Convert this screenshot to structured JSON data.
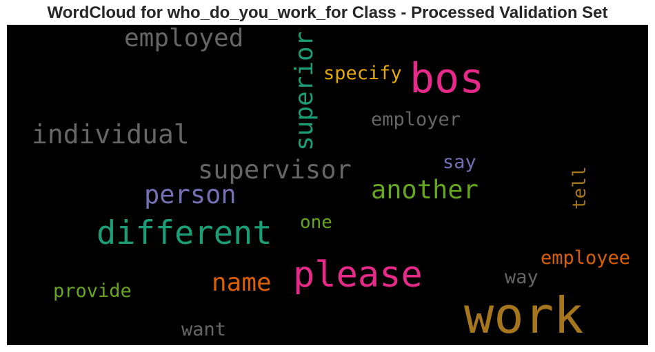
{
  "title": "WordCloud for who_do_you_work_for Class - Processed Validation Set",
  "words": {
    "employed": {
      "text": "employed",
      "color": "#666666"
    },
    "superior": {
      "text": "superior",
      "color": "#1b9e77"
    },
    "specify": {
      "text": "specify",
      "color": "#e6ab02"
    },
    "bos": {
      "text": "bos",
      "color": "#e7298a"
    },
    "employer": {
      "text": "employer",
      "color": "#666666"
    },
    "individual": {
      "text": "individual",
      "color": "#666666"
    },
    "supervisor": {
      "text": "supervisor",
      "color": "#666666"
    },
    "say": {
      "text": "say",
      "color": "#7570b3"
    },
    "tell": {
      "text": "tell",
      "color": "#a6761d"
    },
    "person": {
      "text": "person",
      "color": "#7570b3"
    },
    "another": {
      "text": "another",
      "color": "#66a61e"
    },
    "different": {
      "text": "different",
      "color": "#1b9e77"
    },
    "one": {
      "text": "one",
      "color": "#66a61e"
    },
    "employee": {
      "text": "employee",
      "color": "#d95f02"
    },
    "please": {
      "text": "please",
      "color": "#e7298a"
    },
    "name": {
      "text": "name",
      "color": "#d95f02"
    },
    "way": {
      "text": "way",
      "color": "#666666"
    },
    "provide": {
      "text": "provide",
      "color": "#66a61e"
    },
    "want": {
      "text": "want",
      "color": "#666666"
    },
    "work": {
      "text": "work",
      "color": "#a6761d"
    }
  }
}
